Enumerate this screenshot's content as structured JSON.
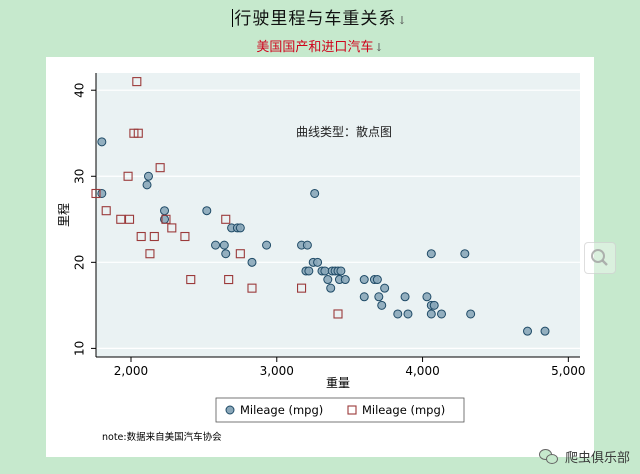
{
  "doc": {
    "title": "行驶里程与车重关系",
    "subtitle": "美国国产和进口汽车",
    "paragraph_mark": "↓"
  },
  "watermark": "爬虫俱乐部",
  "colors": {
    "domestic_fill": "#8aa7b9",
    "domestic_stroke": "#1e4a66",
    "foreign_stroke": "#9b3a3a",
    "plot_bg": "#eaf2f3"
  },
  "chart_data": {
    "type": "scatter",
    "xlabel": "重量",
    "ylabel": "里程",
    "annotation": "曲线类型：散点图",
    "note": "note:数据来自美国汽车协会",
    "xlim": [
      1760,
      5080
    ],
    "ylim": [
      9,
      42
    ],
    "xticks": [
      2000,
      3000,
      4000,
      5000
    ],
    "xtick_labels": [
      "2,000",
      "3,000",
      "4,000",
      "5,000"
    ],
    "yticks": [
      10,
      20,
      30,
      40
    ],
    "ytick_labels": [
      "10",
      "20",
      "30",
      "40"
    ],
    "legend": [
      "Mileage (mpg)",
      "Mileage (mpg)"
    ],
    "series": [
      {
        "name": "Mileage (mpg)",
        "marker": "circle",
        "points": [
          [
            1800,
            34
          ],
          [
            1800,
            28
          ],
          [
            2110,
            29
          ],
          [
            2120,
            30
          ],
          [
            2230,
            25
          ],
          [
            2230,
            26
          ],
          [
            2520,
            26
          ],
          [
            2580,
            22
          ],
          [
            2640,
            22
          ],
          [
            2650,
            21
          ],
          [
            2690,
            24
          ],
          [
            2730,
            24
          ],
          [
            2750,
            24
          ],
          [
            2830,
            20
          ],
          [
            2930,
            22
          ],
          [
            3170,
            22
          ],
          [
            3210,
            22
          ],
          [
            3200,
            19
          ],
          [
            3220,
            19
          ],
          [
            3250,
            20
          ],
          [
            3260,
            28
          ],
          [
            3280,
            20
          ],
          [
            3310,
            19
          ],
          [
            3330,
            19
          ],
          [
            3350,
            18
          ],
          [
            3370,
            17
          ],
          [
            3380,
            19
          ],
          [
            3400,
            19
          ],
          [
            3420,
            19
          ],
          [
            3430,
            18
          ],
          [
            3440,
            19
          ],
          [
            3470,
            18
          ],
          [
            3600,
            16
          ],
          [
            3600,
            18
          ],
          [
            3670,
            18
          ],
          [
            3690,
            18
          ],
          [
            3700,
            16
          ],
          [
            3720,
            15
          ],
          [
            3740,
            17
          ],
          [
            3830,
            14
          ],
          [
            3880,
            16
          ],
          [
            3900,
            14
          ],
          [
            4030,
            16
          ],
          [
            4060,
            15
          ],
          [
            4060,
            14
          ],
          [
            4060,
            21
          ],
          [
            4080,
            15
          ],
          [
            4130,
            14
          ],
          [
            4290,
            21
          ],
          [
            4330,
            14
          ],
          [
            4720,
            12
          ],
          [
            4840,
            12
          ]
        ]
      },
      {
        "name": "Mileage (mpg)",
        "marker": "square",
        "points": [
          [
            1760,
            28
          ],
          [
            1830,
            26
          ],
          [
            1930,
            25
          ],
          [
            1980,
            30
          ],
          [
            1990,
            25
          ],
          [
            2020,
            35
          ],
          [
            2040,
            41
          ],
          [
            2050,
            35
          ],
          [
            2070,
            23
          ],
          [
            2130,
            21
          ],
          [
            2160,
            23
          ],
          [
            2200,
            31
          ],
          [
            2240,
            25
          ],
          [
            2280,
            24
          ],
          [
            2370,
            23
          ],
          [
            2410,
            18
          ],
          [
            2650,
            25
          ],
          [
            2670,
            18
          ],
          [
            2750,
            21
          ],
          [
            2830,
            17
          ],
          [
            3170,
            17
          ],
          [
            3420,
            14
          ]
        ]
      }
    ]
  }
}
